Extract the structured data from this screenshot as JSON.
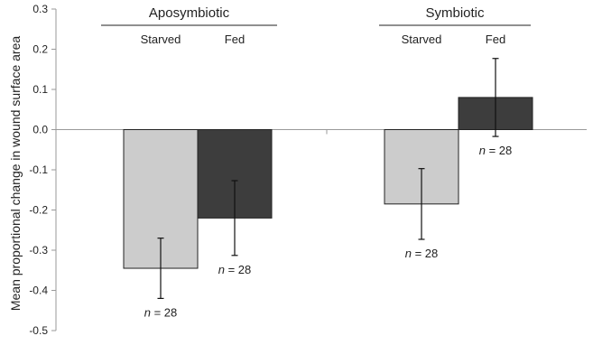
{
  "chart_data": {
    "type": "bar",
    "ylabel": "Mean proportional change in wound surface area",
    "ylim": [
      -0.5,
      0.3
    ],
    "yticks": [
      "0.3",
      "0.2",
      "0.1",
      "0.0",
      "-0.1",
      "-0.2",
      "-0.3",
      "-0.4",
      "-0.5"
    ],
    "ytick_values": [
      0.3,
      0.2,
      0.1,
      0.0,
      -0.1,
      -0.2,
      -0.3,
      -0.4,
      -0.5
    ],
    "groups": [
      {
        "label": "Aposymbiotic",
        "bars": [
          {
            "label": "Starved",
            "value": -0.345,
            "error": 0.075,
            "n_prefix": "n",
            "n_value": "= 28",
            "color": "#cccccc"
          },
          {
            "label": "Fed",
            "value": -0.22,
            "error": 0.093,
            "n_prefix": "n",
            "n_value": "= 28",
            "color": "#3d3d3d"
          }
        ]
      },
      {
        "label": "Symbiotic",
        "bars": [
          {
            "label": "Starved",
            "value": -0.185,
            "error": 0.088,
            "n_prefix": "n",
            "n_value": "= 28",
            "color": "#cccccc"
          },
          {
            "label": "Fed",
            "value": 0.08,
            "error": 0.097,
            "n_prefix": "n",
            "n_value": "= 28",
            "color": "#3d3d3d"
          }
        ]
      }
    ]
  }
}
